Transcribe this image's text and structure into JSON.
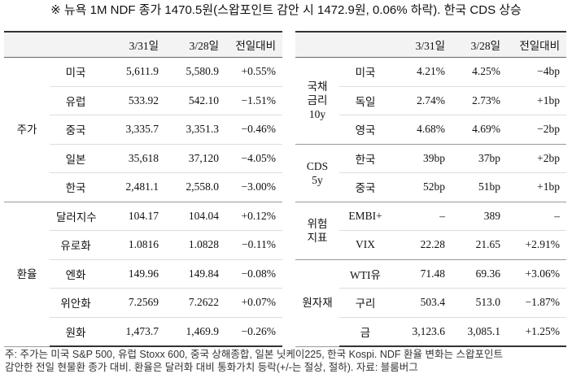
{
  "header": {
    "title": "※ 뉴욕 1M NDF 종가 1470.5원(스왑포인트 감안 시 1472.9원, 0.06% 하락). 한국 CDS 상승"
  },
  "left_table": {
    "columns": [
      "3/31일",
      "3/28일",
      "전일대비"
    ],
    "groups": [
      {
        "label": [
          "주가"
        ],
        "rows": [
          {
            "name": "미국",
            "values": [
              "5,611.9",
              "5,580.9",
              "+0.55%"
            ]
          },
          {
            "name": "유럽",
            "values": [
              "533.92",
              "542.10",
              "−1.51%"
            ]
          },
          {
            "name": "중국",
            "values": [
              "3,335.7",
              "3,351.3",
              "−0.46%"
            ]
          },
          {
            "name": "일본",
            "values": [
              "35,618",
              "37,120",
              "−4.05%"
            ]
          },
          {
            "name": "한국",
            "values": [
              "2,481.1",
              "2,558.0",
              "−3.00%"
            ]
          }
        ]
      },
      {
        "label": [
          "환율"
        ],
        "rows": [
          {
            "name": "달러지수",
            "values": [
              "104.17",
              "104.04",
              "+0.12%"
            ]
          },
          {
            "name": "유로화",
            "values": [
              "1.0816",
              "1.0828",
              "−0.11%"
            ]
          },
          {
            "name": "엔화",
            "values": [
              "149.96",
              "149.84",
              "−0.08%"
            ]
          },
          {
            "name": "위안화",
            "values": [
              "7.2569",
              "7.2622",
              "+0.07%"
            ]
          },
          {
            "name": "원화",
            "values": [
              "1,473.7",
              "1,469.9",
              "−0.26%"
            ]
          }
        ]
      }
    ]
  },
  "right_table": {
    "columns": [
      "3/31일",
      "3/28일",
      "전일대비"
    ],
    "groups": [
      {
        "label": [
          "국채",
          "금리",
          "10y"
        ],
        "rows": [
          {
            "name": "미국",
            "values": [
              "4.21%",
              "4.25%",
              "−4bp"
            ]
          },
          {
            "name": "독일",
            "values": [
              "2.74%",
              "2.73%",
              "+1bp"
            ]
          },
          {
            "name": "영국",
            "values": [
              "4.68%",
              "4.69%",
              "−2bp"
            ]
          }
        ]
      },
      {
        "label": [
          "CDS",
          "5y"
        ],
        "rows": [
          {
            "name": "한국",
            "values": [
              "39bp",
              "37bp",
              "+2bp"
            ]
          },
          {
            "name": "중국",
            "values": [
              "52bp",
              "51bp",
              "+1bp"
            ]
          }
        ]
      },
      {
        "label": [
          "위험",
          "지표"
        ],
        "rows": [
          {
            "name": "EMBI+",
            "values": [
              "–",
              "389",
              "–"
            ]
          },
          {
            "name": "VIX",
            "values": [
              "22.28",
              "21.65",
              "+2.91%"
            ]
          }
        ]
      },
      {
        "label": [
          "원자재"
        ],
        "rows": [
          {
            "name": "WTI유",
            "values": [
              "71.48",
              "69.36",
              "+3.06%"
            ]
          },
          {
            "name": "구리",
            "values": [
              "503.4",
              "513.0",
              "−1.87%"
            ]
          },
          {
            "name": "금",
            "values": [
              "3,123.6",
              "3,085.1",
              "+1.25%"
            ]
          }
        ]
      }
    ]
  },
  "footnote": [
    "주: 주가는 미국 S&P 500, 유럽 Stoxx 600, 중국 상해종합, 일본 닛케이225, 한국 Kospi. NDF 환율 변화는 스왑포인트",
    "감안한 전일 현물환 종가 대비. 환율은 달러화 대비 통화가치 등락(+/-는 절상, 절하). 자료: 블룸버그"
  ]
}
